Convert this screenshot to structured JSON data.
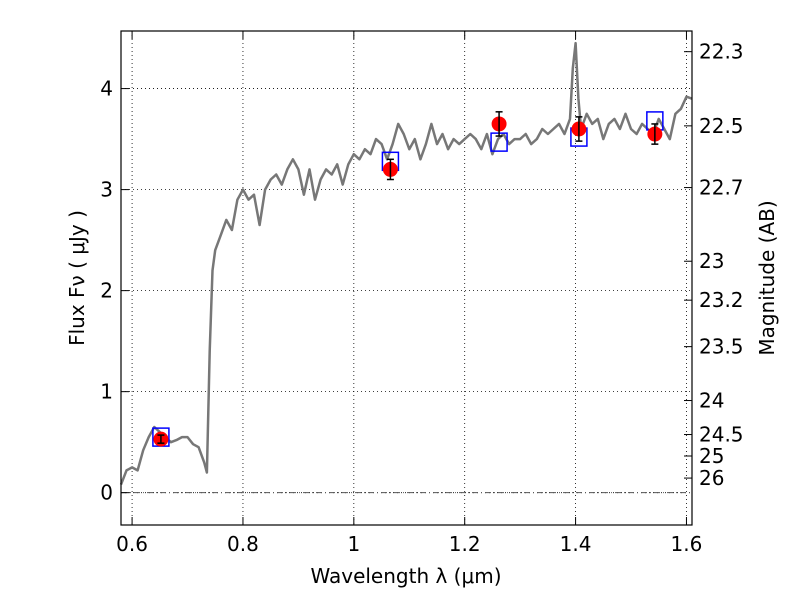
{
  "chart_data": {
    "type": "line",
    "xlabel": "Wavelength  λ (μm)",
    "ylabel_left": "Flux  Fν  ( μJy )",
    "ylabel_right": "Magnitude (AB)",
    "xlim": [
      0.58,
      1.61
    ],
    "ylim": [
      -0.32,
      4.57
    ],
    "grid": true,
    "colors": {
      "spectrum": "#777777",
      "observed": "#ff0000",
      "model": "#0000ff",
      "zero_line": "#555555"
    },
    "x_ticks": [
      {
        "value": 0.6,
        "label": "0.6"
      },
      {
        "value": 0.8,
        "label": "0.8"
      },
      {
        "value": 1.0,
        "label": "1"
      },
      {
        "value": 1.2,
        "label": "1.2"
      },
      {
        "value": 1.4,
        "label": "1.4"
      },
      {
        "value": 1.6,
        "label": "1.6"
      }
    ],
    "y_ticks": [
      {
        "value": 0,
        "label": "0"
      },
      {
        "value": 1,
        "label": "1"
      },
      {
        "value": 2,
        "label": "2"
      },
      {
        "value": 3,
        "label": "3"
      },
      {
        "value": 4,
        "label": "4"
      }
    ],
    "mag_ticks": [
      {
        "value": 22.3,
        "label": "22.3"
      },
      {
        "value": 22.5,
        "label": "22.5"
      },
      {
        "value": 22.7,
        "label": "22.7"
      },
      {
        "value": 23.0,
        "label": "23"
      },
      {
        "value": 23.2,
        "label": "23.2"
      },
      {
        "value": 23.5,
        "label": "23.5"
      },
      {
        "value": 24.0,
        "label": "24"
      },
      {
        "value": 24.5,
        "label": "24.5"
      },
      {
        "value": 25.0,
        "label": "25"
      },
      {
        "value": 26.0,
        "label": "26"
      }
    ],
    "spectrum": {
      "x": [
        0.58,
        0.59,
        0.6,
        0.61,
        0.62,
        0.63,
        0.64,
        0.65,
        0.66,
        0.67,
        0.68,
        0.69,
        0.7,
        0.71,
        0.72,
        0.73,
        0.735,
        0.74,
        0.745,
        0.75,
        0.76,
        0.77,
        0.78,
        0.79,
        0.8,
        0.81,
        0.82,
        0.83,
        0.84,
        0.85,
        0.86,
        0.87,
        0.88,
        0.89,
        0.9,
        0.91,
        0.92,
        0.93,
        0.94,
        0.95,
        0.96,
        0.97,
        0.98,
        0.99,
        1.0,
        1.01,
        1.02,
        1.03,
        1.04,
        1.05,
        1.06,
        1.07,
        1.08,
        1.09,
        1.1,
        1.11,
        1.12,
        1.13,
        1.14,
        1.15,
        1.16,
        1.17,
        1.18,
        1.19,
        1.2,
        1.21,
        1.22,
        1.23,
        1.24,
        1.25,
        1.26,
        1.27,
        1.28,
        1.29,
        1.3,
        1.31,
        1.32,
        1.33,
        1.34,
        1.35,
        1.36,
        1.37,
        1.38,
        1.39,
        1.395,
        1.4,
        1.405,
        1.41,
        1.42,
        1.43,
        1.44,
        1.45,
        1.46,
        1.47,
        1.48,
        1.49,
        1.5,
        1.51,
        1.52,
        1.53,
        1.54,
        1.55,
        1.56,
        1.57,
        1.58,
        1.59,
        1.6,
        1.61
      ],
      "y": [
        0.08,
        0.22,
        0.25,
        0.22,
        0.42,
        0.55,
        0.65,
        0.6,
        0.55,
        0.5,
        0.52,
        0.55,
        0.55,
        0.48,
        0.45,
        0.3,
        0.2,
        1.4,
        2.2,
        2.4,
        2.55,
        2.7,
        2.6,
        2.9,
        3.0,
        2.9,
        2.95,
        2.65,
        3.0,
        3.1,
        3.15,
        3.05,
        3.2,
        3.3,
        3.2,
        2.95,
        3.2,
        2.9,
        3.1,
        3.2,
        3.15,
        3.25,
        3.05,
        3.25,
        3.35,
        3.3,
        3.4,
        3.35,
        3.5,
        3.45,
        3.3,
        3.45,
        3.65,
        3.55,
        3.4,
        3.5,
        3.3,
        3.45,
        3.65,
        3.45,
        3.55,
        3.4,
        3.5,
        3.45,
        3.5,
        3.55,
        3.5,
        3.4,
        3.55,
        3.35,
        3.5,
        3.55,
        3.45,
        3.5,
        3.5,
        3.55,
        3.45,
        3.5,
        3.6,
        3.55,
        3.6,
        3.65,
        3.55,
        3.7,
        4.2,
        4.45,
        3.9,
        3.6,
        3.75,
        3.65,
        3.7,
        3.5,
        3.65,
        3.7,
        3.6,
        3.75,
        3.6,
        3.55,
        3.65,
        3.6,
        3.55,
        3.7,
        3.6,
        3.5,
        3.75,
        3.8,
        3.92,
        3.9
      ]
    },
    "observed": [
      {
        "x": 0.652,
        "flux": 0.53,
        "err": 0.04
      },
      {
        "x": 1.066,
        "flux": 3.2,
        "err": 0.1
      },
      {
        "x": 1.262,
        "flux": 3.65,
        "err": 0.12
      },
      {
        "x": 1.406,
        "flux": 3.6,
        "err": 0.12
      },
      {
        "x": 1.543,
        "flux": 3.55,
        "err": 0.1
      }
    ],
    "model": [
      {
        "x": 0.652,
        "flux": 0.55
      },
      {
        "x": 1.066,
        "flux": 3.28
      },
      {
        "x": 1.262,
        "flux": 3.47
      },
      {
        "x": 1.406,
        "flux": 3.52
      },
      {
        "x": 1.543,
        "flux": 3.68
      }
    ]
  }
}
